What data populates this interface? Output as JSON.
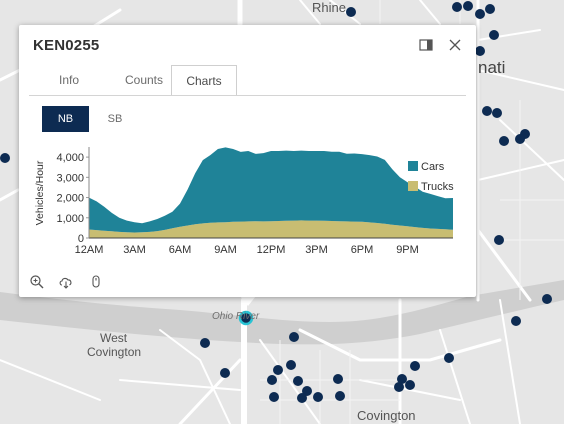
{
  "map": {
    "labels": {
      "rhine": "Rhine",
      "cinci_fragment": "nati",
      "west_covington_1": "West",
      "west_covington_2": "Covington",
      "covington": "Covington",
      "ohio_river": "Ohio River"
    },
    "colors": {
      "land": "#e6e6e6",
      "river": "#cfcfcf",
      "road": "#ffffff",
      "marker": "#0d2b52",
      "selected_ring": "#28c3d4"
    }
  },
  "popup": {
    "title": "KEN0255",
    "dock_icon": "dock-icon",
    "close_icon": "close-icon",
    "tabs": [
      {
        "label": "Info",
        "active": false
      },
      {
        "label": "Counts",
        "active": false
      },
      {
        "label": "Charts",
        "active": true
      }
    ],
    "direction_buttons": [
      {
        "label": "NB",
        "active": true
      },
      {
        "label": "SB",
        "active": false
      }
    ],
    "footer_icons": [
      "zoom-in-icon",
      "download-icon",
      "mouse-icon"
    ]
  },
  "chart_data": {
    "type": "area",
    "stacked": true,
    "ylabel": "Vehicles/Hour",
    "ylim": [
      0,
      4500
    ],
    "yticks": [
      "0",
      "1,000",
      "2,000",
      "3,000",
      "4,000"
    ],
    "ytick_values": [
      0,
      1000,
      2000,
      3000,
      4000
    ],
    "xlim": [
      0,
      24
    ],
    "xticks": [
      "12AM",
      "3AM",
      "6AM",
      "9AM",
      "12PM",
      "3PM",
      "6PM",
      "9PM"
    ],
    "xtick_values": [
      0,
      3,
      6,
      9,
      12,
      15,
      18,
      21
    ],
    "legend_position": "right",
    "x": [
      0,
      0.5,
      1,
      1.5,
      2,
      2.5,
      3,
      3.5,
      4,
      4.5,
      5,
      5.5,
      6,
      6.5,
      7,
      7.5,
      8,
      8.5,
      9,
      9.5,
      10,
      10.5,
      11,
      11.5,
      12,
      12.5,
      13,
      13.5,
      14,
      14.5,
      15,
      15.5,
      16,
      16.5,
      17,
      17.5,
      18,
      18.5,
      19,
      19.5,
      20,
      20.5,
      21,
      21.5,
      22,
      22.5,
      23,
      23.5,
      24
    ],
    "series": [
      {
        "name": "Trucks",
        "color": "#c8bd72",
        "values": [
          420,
          390,
          360,
          330,
          300,
          280,
          270,
          280,
          300,
          340,
          400,
          480,
          560,
          620,
          680,
          720,
          750,
          770,
          780,
          800,
          810,
          820,
          830,
          820,
          830,
          840,
          850,
          860,
          870,
          860,
          860,
          850,
          840,
          830,
          820,
          810,
          800,
          770,
          740,
          700,
          660,
          620,
          580,
          540,
          500,
          470,
          450,
          430,
          410
        ]
      },
      {
        "name": "Cars",
        "color": "#1f8398",
        "values": [
          1580,
          1420,
          1190,
          910,
          700,
          580,
          510,
          450,
          520,
          600,
          700,
          820,
          1140,
          1780,
          2520,
          3130,
          3350,
          3630,
          3700,
          3600,
          3450,
          3480,
          3330,
          3380,
          3470,
          3460,
          3470,
          3440,
          3450,
          3440,
          3440,
          3450,
          3430,
          3440,
          3350,
          3370,
          3350,
          3330,
          3290,
          3160,
          2740,
          2380,
          2180,
          1990,
          1790,
          1710,
          1620,
          1540,
          1570
        ]
      }
    ]
  }
}
